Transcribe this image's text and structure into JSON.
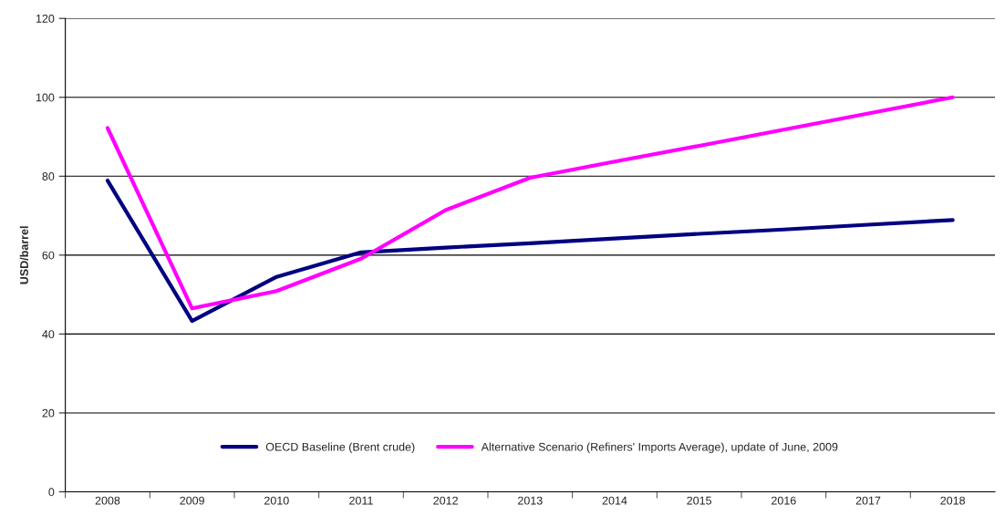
{
  "chart_data": {
    "type": "line",
    "ylabel": "USD/barrel",
    "categories": [
      "2008",
      "2009",
      "2010",
      "2011",
      "2012",
      "2013",
      "2014",
      "2015",
      "2016",
      "2017",
      "2018"
    ],
    "series": [
      {
        "name": "OECD Baseline (Brent crude)",
        "color": "#000080",
        "values": [
          78.9,
          43.3,
          54.5,
          60.7,
          61.9,
          63.0,
          64.2,
          65.4,
          66.5,
          67.7,
          68.9
        ]
      },
      {
        "name": "Alternative Scenario (Refiners' Imports Average), update of June, 2009",
        "color": "#ff00ff",
        "values": [
          92.2,
          46.5,
          50.9,
          59.1,
          71.4,
          79.6,
          83.7,
          87.7,
          91.8,
          95.9,
          100.0
        ]
      }
    ],
    "ylim": [
      0,
      120
    ],
    "yticks": [
      0,
      20,
      40,
      60,
      80,
      100,
      120
    ],
    "grid": "y",
    "legend": "bottom",
    "marker": "none",
    "line_style": "solid"
  }
}
